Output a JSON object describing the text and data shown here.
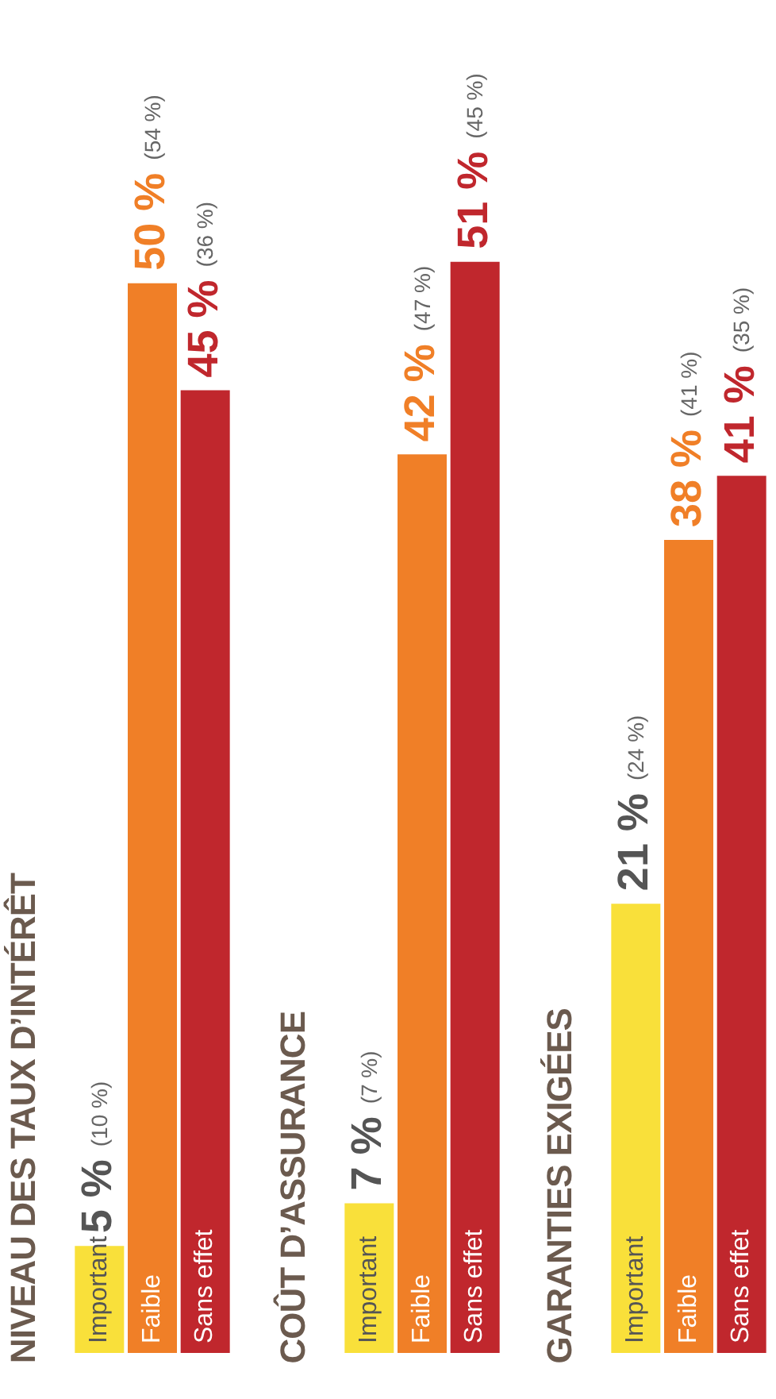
{
  "chart_data": [
    {
      "type": "bar",
      "title": "NIVEAU DES TAUX D’INTÉRÊT",
      "categories": [
        "Important",
        "Faible",
        "Sans effet"
      ],
      "values": [
        5,
        50,
        45
      ],
      "colors": [
        "#f9e03a",
        "#f07f27",
        "#c0272d"
      ],
      "value_labels": [
        "5 %",
        "50 %",
        "45 %"
      ],
      "annotations": [
        "(10 %)",
        "(54 %)",
        "(36 %)"
      ]
    },
    {
      "type": "bar",
      "title": "COÛT D’ASSURANCE",
      "categories": [
        "Important",
        "Faible",
        "Sans effet"
      ],
      "values": [
        7,
        42,
        51
      ],
      "colors": [
        "#f9e03a",
        "#f07f27",
        "#c0272d"
      ],
      "value_labels": [
        "7 %",
        "42 %",
        "51 %"
      ],
      "annotations": [
        "(7 %)",
        "(47 %)",
        "(45 %)"
      ]
    },
    {
      "type": "bar",
      "title": "GARANTIES EXIGÉES",
      "categories": [
        "Important",
        "Faible",
        "Sans effet"
      ],
      "values": [
        21,
        38,
        41
      ],
      "colors": [
        "#f9e03a",
        "#f07f27",
        "#c0272d"
      ],
      "value_labels": [
        "21 %",
        "38 %",
        "41 %"
      ],
      "annotations": [
        "(24 %)",
        "(41 %)",
        "(35 %)"
      ]
    }
  ]
}
